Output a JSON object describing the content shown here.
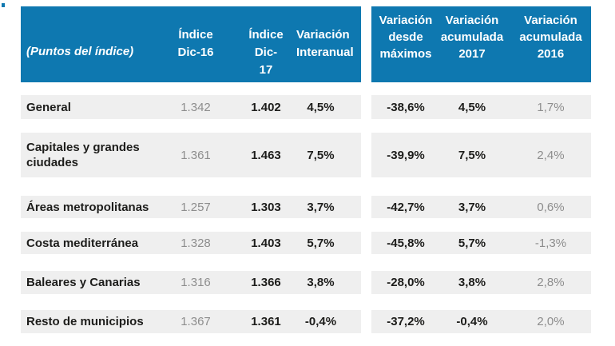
{
  "colors": {
    "header_blue": "#0e78b0",
    "row_stripe_gray": "#efefef",
    "muted_text_gray": "#8d8d8d",
    "ink_black": "#1d1d1b",
    "header_text_white": "#ffffff"
  },
  "header": {
    "unit_label": "(Puntos del índice)",
    "left_cols": [
      "Índice\nDic-16",
      "Índice\nDic-\n17",
      "Variación\nInteranual"
    ],
    "right_cols": [
      "Variación\ndesde\nmáximos",
      "Variación\nacumulada\n2017",
      "Variación\nacumulada\n2016"
    ]
  },
  "rows": [
    {
      "label": "General",
      "dic16": "1.342",
      "dic17": "1.402",
      "interanual": "4,5%",
      "desde_maximos": "-38,6%",
      "acum2017": "4,5%",
      "acum2016": "1,7%"
    },
    {
      "label": "Capitales y grandes ciudades",
      "dic16": "1.361",
      "dic17": "1.463",
      "interanual": "7,5%",
      "desde_maximos": "-39,9%",
      "acum2017": "7,5%",
      "acum2016": "2,4%"
    },
    {
      "label": "Áreas metropolitanas",
      "dic16": "1.257",
      "dic17": "1.303",
      "interanual": "3,7%",
      "desde_maximos": "-42,7%",
      "acum2017": "3,7%",
      "acum2016": "0,6%"
    },
    {
      "label": "Costa mediterránea",
      "dic16": "1.328",
      "dic17": "1.403",
      "interanual": "5,7%",
      "desde_maximos": "-45,8%",
      "acum2017": "5,7%",
      "acum2016": "-1,3%"
    },
    {
      "label": "Baleares y Canarias",
      "dic16": "1.316",
      "dic17": "1.366",
      "interanual": "3,8%",
      "desde_maximos": "-28,0%",
      "acum2017": "3,8%",
      "acum2016": "2,8%"
    },
    {
      "label": "Resto de municipios",
      "dic16": "1.367",
      "dic17": "1.361",
      "interanual": "-0,4%",
      "desde_maximos": "-37,2%",
      "acum2017": "-0,4%",
      "acum2016": "2,0%"
    }
  ],
  "chart_data": {
    "type": "table",
    "title": "(Puntos del índice)",
    "columns": [
      "Índice Dic-16",
      "Índice Dic-17",
      "Variación Interanual",
      "Variación desde máximos",
      "Variación acumulada 2017",
      "Variación acumulada 2016"
    ],
    "categories": [
      "General",
      "Capitales y grandes ciudades",
      "Áreas metropolitanas",
      "Costa mediterránea",
      "Baleares y Canarias",
      "Resto de municipios"
    ],
    "series": [
      {
        "name": "Índice Dic-16",
        "values": [
          1342,
          1361,
          1257,
          1328,
          1316,
          1367
        ]
      },
      {
        "name": "Índice Dic-17",
        "values": [
          1402,
          1463,
          1303,
          1403,
          1366,
          1361
        ]
      },
      {
        "name": "Variación Interanual (%)",
        "values": [
          4.5,
          7.5,
          3.7,
          5.7,
          3.8,
          -0.4
        ]
      },
      {
        "name": "Variación desde máximos (%)",
        "values": [
          -38.6,
          -39.9,
          -42.7,
          -45.8,
          -28.0,
          -37.2
        ]
      },
      {
        "name": "Variación acumulada 2017 (%)",
        "values": [
          4.5,
          7.5,
          3.7,
          5.7,
          3.8,
          -0.4
        ]
      },
      {
        "name": "Variación acumulada 2016 (%)",
        "values": [
          1.7,
          2.4,
          0.6,
          -1.3,
          2.8,
          2.0
        ]
      }
    ]
  }
}
